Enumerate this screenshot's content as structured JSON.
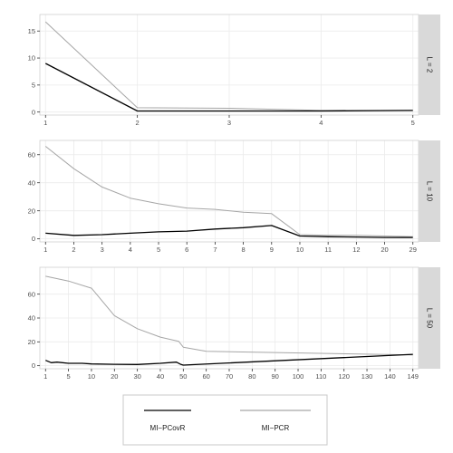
{
  "chart_data": [
    {
      "type": "line",
      "panel_label": "L = 2",
      "ylim": [
        0,
        17.5
      ],
      "y_ticks": [
        0,
        5,
        10,
        15
      ],
      "x_ticks": [
        1,
        2,
        3,
        4,
        5
      ],
      "x_ticks_labeled": [
        1,
        2,
        3,
        4,
        5
      ],
      "xlim": [
        1,
        5
      ],
      "grid": true,
      "series": [
        {
          "name": "MI−PCovR",
          "color": "#000000",
          "x": [
            1,
            2,
            3,
            4,
            5
          ],
          "y": [
            9.0,
            0.2,
            0.2,
            0.2,
            0.3
          ]
        },
        {
          "name": "MI−PCR",
          "color": "#a6a6a6",
          "x": [
            1,
            2,
            3,
            4,
            5
          ],
          "y": [
            16.7,
            0.8,
            0.7,
            0.3,
            0.3
          ]
        }
      ]
    },
    {
      "type": "line",
      "panel_label": "L = 10",
      "ylim": [
        0,
        68
      ],
      "y_ticks": [
        0,
        20,
        40,
        60
      ],
      "x_ticks": [
        1,
        2,
        3,
        4,
        5,
        6,
        7,
        8,
        9,
        10,
        11,
        12,
        20,
        29
      ],
      "x_ticks_labeled": [
        1,
        2,
        3,
        4,
        5,
        6,
        7,
        8,
        9,
        10,
        11,
        12,
        20,
        29
      ],
      "xlim": [
        1,
        29
      ],
      "grid": true,
      "series": [
        {
          "name": "MI−PCovR",
          "color": "#000000",
          "x": [
            1,
            2,
            3,
            4,
            5,
            6,
            7,
            8,
            9,
            10,
            11,
            12,
            20,
            29
          ],
          "y": [
            4,
            2.5,
            3,
            4,
            5,
            5.5,
            7,
            8,
            9.5,
            2,
            1.5,
            1.3,
            1.0,
            1.0
          ]
        },
        {
          "name": "MI−PCR",
          "color": "#a6a6a6",
          "x": [
            1,
            2,
            3,
            4,
            5,
            6,
            7,
            8,
            9,
            10,
            11,
            12,
            20,
            29
          ],
          "y": [
            66,
            50,
            37,
            29,
            25,
            22,
            21,
            19,
            18,
            3,
            2.5,
            2.5,
            2,
            1.5
          ]
        }
      ]
    },
    {
      "type": "line",
      "panel_label": "L = 50",
      "ylim": [
        0,
        80
      ],
      "y_ticks": [
        0,
        20,
        40,
        60
      ],
      "x_ticks": [
        1,
        5,
        10,
        20,
        30,
        40,
        50,
        60,
        70,
        80,
        90,
        100,
        110,
        120,
        130,
        140,
        149
      ],
      "x_ticks_labeled": [
        1,
        5,
        10,
        20,
        30,
        40,
        50,
        60,
        70,
        80,
        90,
        100,
        110,
        120,
        130,
        140,
        149
      ],
      "xlim": [
        1,
        149
      ],
      "grid": true,
      "series": [
        {
          "name": "MI−PCovR",
          "color": "#000000",
          "x": [
            1,
            2,
            3,
            5,
            8,
            10,
            20,
            30,
            40,
            47,
            49,
            50,
            149
          ],
          "y": [
            4.5,
            2.5,
            3,
            2,
            2,
            1.5,
            1.2,
            1.0,
            2,
            3,
            1,
            0.5,
            9.5
          ]
        },
        {
          "name": "MI−PCR",
          "color": "#a6a6a6",
          "x": [
            1,
            5,
            10,
            20,
            30,
            40,
            48,
            50,
            60,
            149
          ],
          "y": [
            75,
            71,
            65,
            42,
            31,
            24,
            20.5,
            15.5,
            12,
            9
          ]
        }
      ]
    }
  ],
  "legend": {
    "position": "bottom",
    "entries": [
      {
        "label": "MI−PCovR",
        "color": "#000000"
      },
      {
        "label": "MI−PCR",
        "color": "#a6a6a6"
      }
    ]
  },
  "colors": {
    "background": "#ffffff",
    "grid": "#ebebeb",
    "strip_background": "#d9d9d9",
    "axis_text": "#4d4d4d"
  }
}
